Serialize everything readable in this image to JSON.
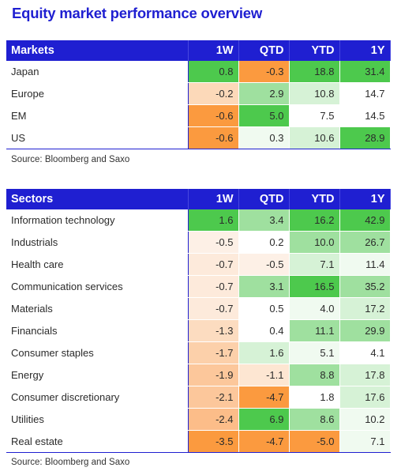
{
  "title": "Equity market performance overview",
  "source_note": "Source: Bloomberg and Saxo",
  "colors": {
    "header_bg": "#1f1fd1",
    "high_positive": "#4dc94d",
    "positive": "#9fe09f",
    "mild_positive": "#d6f2d6",
    "neutral": "#ffffff",
    "mild_negative": "#fde6d2",
    "negative": "#fcc79b",
    "low_negative": "#fb9a3f"
  },
  "chart_data": [
    {
      "type": "table",
      "columns": [
        "Markets",
        "1W",
        "QTD",
        "YTD",
        "1Y"
      ],
      "rows": [
        {
          "label": "Japan",
          "values": [
            "0.8",
            "-0.3",
            "18.8",
            "31.4"
          ],
          "colors": [
            "#4dc94d",
            "#fb9a3f",
            "#4dc94d",
            "#4dc94d"
          ]
        },
        {
          "label": "Europe",
          "values": [
            "-0.2",
            "2.9",
            "10.8",
            "14.7"
          ],
          "colors": [
            "#fcd9b9",
            "#9fe09f",
            "#d6f2d6",
            "#ffffff"
          ]
        },
        {
          "label": "EM",
          "values": [
            "-0.6",
            "5.0",
            "7.5",
            "14.5"
          ],
          "colors": [
            "#fb9a3f",
            "#4dc94d",
            "#ffffff",
            "#ffffff"
          ]
        },
        {
          "label": "US",
          "values": [
            "-0.6",
            "0.3",
            "10.6",
            "28.9"
          ],
          "colors": [
            "#fb9a3f",
            "#f0faf0",
            "#d6f2d6",
            "#4dc94d"
          ]
        }
      ]
    },
    {
      "type": "table",
      "columns": [
        "Sectors",
        "1W",
        "QTD",
        "YTD",
        "1Y"
      ],
      "rows": [
        {
          "label": "Information technology",
          "values": [
            "1.6",
            "3.4",
            "16.2",
            "42.9"
          ],
          "colors": [
            "#4dc94d",
            "#9fe09f",
            "#4dc94d",
            "#4dc94d"
          ]
        },
        {
          "label": "Industrials",
          "values": [
            "-0.5",
            "0.2",
            "10.0",
            "26.7"
          ],
          "colors": [
            "#fdf0e6",
            "#ffffff",
            "#9fe09f",
            "#9fe09f"
          ]
        },
        {
          "label": "Health care",
          "values": [
            "-0.7",
            "-0.5",
            "7.1",
            "11.4"
          ],
          "colors": [
            "#fdeadb",
            "#fdf0e6",
            "#d6f2d6",
            "#f0faf0"
          ]
        },
        {
          "label": "Communication services",
          "values": [
            "-0.7",
            "3.1",
            "16.5",
            "35.2"
          ],
          "colors": [
            "#fdeadb",
            "#9fe09f",
            "#4dc94d",
            "#9fe09f"
          ]
        },
        {
          "label": "Materials",
          "values": [
            "-0.7",
            "0.5",
            "4.0",
            "17.2"
          ],
          "colors": [
            "#fdeadb",
            "#ffffff",
            "#f0faf0",
            "#d6f2d6"
          ]
        },
        {
          "label": "Financials",
          "values": [
            "-1.3",
            "0.4",
            "11.1",
            "29.9"
          ],
          "colors": [
            "#fcdcc0",
            "#ffffff",
            "#9fe09f",
            "#9fe09f"
          ]
        },
        {
          "label": "Consumer staples",
          "values": [
            "-1.7",
            "1.6",
            "5.1",
            "4.1"
          ],
          "colors": [
            "#fcd0aa",
            "#d6f2d6",
            "#f0faf0",
            "#ffffff"
          ]
        },
        {
          "label": "Energy",
          "values": [
            "-1.9",
            "-1.1",
            "8.8",
            "17.8"
          ],
          "colors": [
            "#fcc79b",
            "#fde6d2",
            "#9fe09f",
            "#d6f2d6"
          ]
        },
        {
          "label": "Consumer discretionary",
          "values": [
            "-2.1",
            "-4.7",
            "1.8",
            "17.6"
          ],
          "colors": [
            "#fcc79b",
            "#fb9a3f",
            "#ffffff",
            "#d6f2d6"
          ]
        },
        {
          "label": "Utilities",
          "values": [
            "-2.4",
            "6.9",
            "8.6",
            "10.2"
          ],
          "colors": [
            "#fcbd89",
            "#4dc94d",
            "#9fe09f",
            "#f0faf0"
          ]
        },
        {
          "label": "Real estate",
          "values": [
            "-3.5",
            "-4.7",
            "-5.0",
            "7.1"
          ],
          "colors": [
            "#fb9a3f",
            "#fb9a3f",
            "#fb9a3f",
            "#f0faf0"
          ]
        }
      ]
    }
  ]
}
